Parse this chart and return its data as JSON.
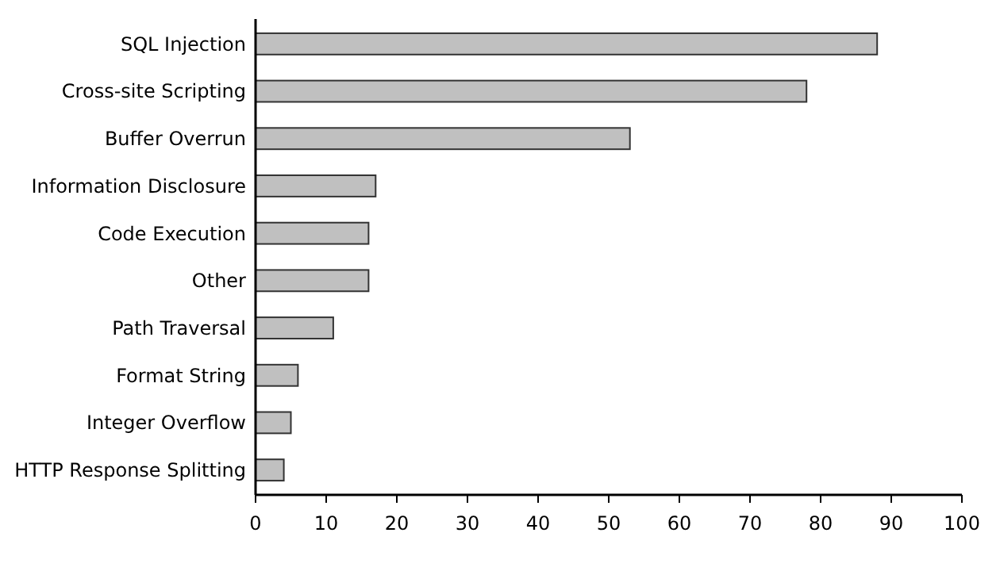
{
  "chart_data": {
    "type": "bar",
    "orientation": "horizontal",
    "categories": [
      "SQL Injection",
      "Cross-site Scripting",
      "Buffer Overrun",
      "Information Disclosure",
      "Code Execution",
      "Other",
      "Path Traversal",
      "Format String",
      "Integer Overflow",
      "HTTP Response Splitting"
    ],
    "values": [
      88,
      78,
      53,
      17,
      16,
      16,
      11,
      6,
      5,
      4
    ],
    "color": "#c0c0c0",
    "xlim": [
      0,
      100
    ],
    "xticks": [
      0,
      10,
      20,
      30,
      40,
      50,
      60,
      70,
      80,
      90,
      100
    ]
  }
}
